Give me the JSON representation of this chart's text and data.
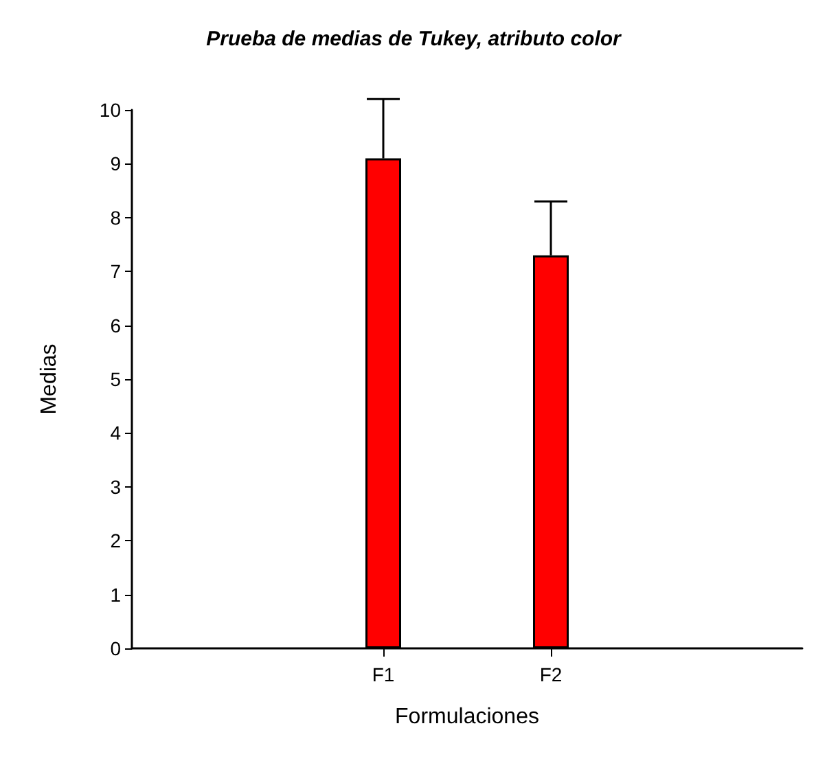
{
  "chart_data": {
    "type": "bar",
    "title": "Prueba de medias de Tukey, atributo color",
    "xlabel": "Formulaciones",
    "ylabel": "Medias",
    "categories": [
      "F1",
      "F2"
    ],
    "values": [
      9.1,
      7.3
    ],
    "errors": [
      [
        9.1,
        10.2
      ],
      [
        7.3,
        8.3
      ]
    ],
    "color": "#ff0000",
    "ylim": [
      0,
      10
    ],
    "yticks": [
      0,
      1,
      2,
      3,
      4,
      5,
      6,
      7,
      8,
      9,
      10
    ]
  }
}
